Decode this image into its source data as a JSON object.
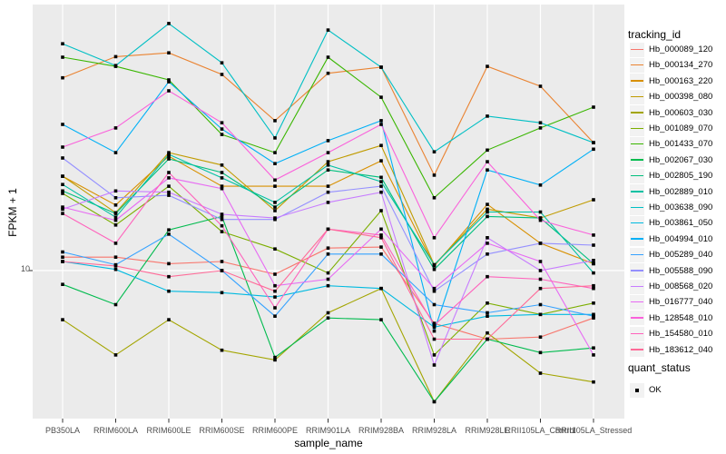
{
  "figure": {
    "background": "#FFFFFF",
    "panel_background": "#EBEBEB",
    "grid_color": "#FFFFFF",
    "tick_color": "#333333",
    "tick_text_color": "#4D4D4D",
    "point_color": "#000000",
    "legend_key_background": "#F2F2F2"
  },
  "chart_data": {
    "type": "line",
    "title": "",
    "xlabel": "sample_name",
    "ylabel": "FPKM + 1",
    "y_scale": "log10",
    "y_tick_labels": [
      "10"
    ],
    "grid": "major-only",
    "legend_position": "right",
    "categories": [
      "PB350LA",
      "RRIM600LA",
      "RRIM600LE",
      "RRIM600SE",
      "RRIM600PE",
      "RRIM901LA",
      "RRIM928BA",
      "RRIM928LA",
      "RRIM928LE",
      "RRII105LA_Control",
      "RRII105LA_Stressed"
    ],
    "series": [
      {
        "name": "Hb_000089_120",
        "color": "#F8766D",
        "values": [
          11.2,
          11.2,
          10.6,
          10.8,
          9.7,
          12.1,
          12.2,
          6.4,
          5.6,
          5.7,
          6.7
        ]
      },
      {
        "name": "Hb_000134_270",
        "color": "#EA8331",
        "values": [
          51.0,
          61.0,
          63.0,
          52.5,
          35.5,
          53.0,
          55.8,
          22.4,
          56.2,
          47.5,
          29.5
        ]
      },
      {
        "name": "Hb_000163_220",
        "color": "#D89000",
        "values": [
          22.2,
          17.4,
          26.3,
          20.4,
          20.4,
          20.4,
          25.3,
          10.4,
          17.5,
          12.6,
          10.6
        ]
      },
      {
        "name": "Hb_000398_080",
        "color": "#C09B00",
        "values": [
          22.2,
          16.3,
          27.1,
          24.4,
          16.6,
          25.1,
          28.8,
          10.5,
          16.8,
          15.6,
          18.2
        ]
      },
      {
        "name": "Hb_000603_030",
        "color": "#A3A500",
        "values": [
          6.6,
          4.9,
          6.6,
          5.1,
          4.7,
          7.0,
          8.6,
          3.3,
          5.9,
          4.2,
          3.9
        ]
      },
      {
        "name": "Hb_001089_070",
        "color": "#7CAE00",
        "values": [
          19.2,
          14.7,
          20.4,
          13.9,
          12.0,
          9.8,
          16.6,
          4.9,
          7.6,
          6.9,
          7.6
        ]
      },
      {
        "name": "Hb_001433_070",
        "color": "#39B600",
        "values": [
          60.7,
          56.2,
          50.1,
          31.6,
          27.1,
          60.7,
          43.3,
          18.5,
          27.7,
          33.4,
          39.8
        ]
      },
      {
        "name": "Hb_002067_030",
        "color": "#00BB4E",
        "values": [
          8.9,
          7.5,
          14.1,
          15.8,
          4.8,
          6.7,
          6.6,
          3.3,
          5.6,
          5.0,
          5.2
        ]
      },
      {
        "name": "Hb_002805_190",
        "color": "#00BF7D",
        "values": [
          19.6,
          16.2,
          25.7,
          22.9,
          17.1,
          23.4,
          22.0,
          10.1,
          15.8,
          15.6,
          10.6
        ]
      },
      {
        "name": "Hb_002889_010",
        "color": "#00C1A3",
        "values": [
          20.7,
          15.7,
          26.7,
          21.9,
          17.8,
          24.4,
          21.2,
          10.5,
          16.4,
          16.4,
          9.8
        ]
      },
      {
        "name": "Hb_003638_090",
        "color": "#00BFC4",
        "values": [
          68.0,
          56.6,
          80.7,
          57.9,
          30.7,
          76.4,
          55.8,
          27.3,
          36.9,
          34.9,
          29.5
        ]
      },
      {
        "name": "Hb_003861_050",
        "color": "#00BAE0",
        "values": [
          10.8,
          10.1,
          8.4,
          8.3,
          8.0,
          8.8,
          8.6,
          6.2,
          6.8,
          6.9,
          6.9
        ]
      },
      {
        "name": "Hb_004994_010",
        "color": "#00B0F6",
        "values": [
          34.4,
          27.1,
          49.3,
          33.1,
          24.7,
          30.0,
          35.5,
          6.0,
          23.4,
          20.6,
          27.9
        ]
      },
      {
        "name": "Hb_005289_040",
        "color": "#35A2FF",
        "values": [
          11.7,
          10.5,
          13.6,
          10.0,
          6.8,
          11.5,
          11.5,
          7.5,
          7.0,
          7.5,
          6.8
        ]
      },
      {
        "name": "Hb_005588_090",
        "color": "#9590FF",
        "values": [
          25.9,
          18.5,
          18.9,
          15.4,
          15.4,
          19.4,
          20.4,
          8.4,
          11.5,
          12.6,
          12.4
        ]
      },
      {
        "name": "Hb_008568_020",
        "color": "#C77CFF",
        "values": [
          16.8,
          19.6,
          19.4,
          16.1,
          15.6,
          17.8,
          19.4,
          4.5,
          13.2,
          10.0,
          10.9
        ]
      },
      {
        "name": "Hb_016777_040",
        "color": "#E76BF3",
        "values": [
          17.1,
          15.3,
          21.9,
          20.0,
          8.8,
          9.3,
          14.2,
          8.6,
          12.6,
          10.8,
          4.9
        ]
      },
      {
        "name": "Hb_128548_010",
        "color": "#FA62DB",
        "values": [
          28.4,
          33.4,
          45.7,
          34.9,
          21.5,
          27.1,
          34.4,
          13.2,
          25.1,
          15.3,
          13.5
        ]
      },
      {
        "name": "Hb_154580_010",
        "color": "#FF62BC",
        "values": [
          16.2,
          12.6,
          22.9,
          14.6,
          7.3,
          14.2,
          13.5,
          6.3,
          9.5,
          9.3,
          8.6
        ]
      },
      {
        "name": "Hb_183612_040",
        "color": "#FF6A98",
        "values": [
          10.8,
          10.4,
          9.5,
          10.0,
          8.4,
          14.2,
          13.2,
          5.6,
          5.6,
          8.6,
          8.8
        ]
      }
    ],
    "legend": {
      "tracking_title": "tracking_id",
      "quant_title": "quant_status",
      "quant_items": [
        {
          "label": "OK",
          "marker": "black-square"
        }
      ]
    }
  }
}
